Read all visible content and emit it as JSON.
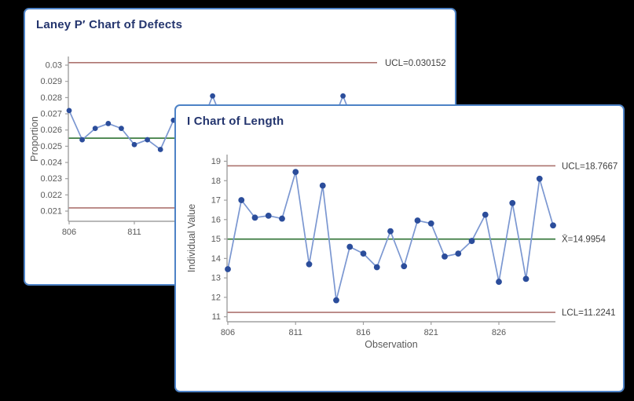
{
  "colors": {
    "page_bg": "#000000",
    "window_bg": "#ffffff",
    "window_border": "#4d82c6",
    "title_text": "#24356e",
    "marker": "#2b4d9b",
    "series_line": "#7b97d1",
    "limit_line": "#ad7470",
    "center_line": "#2e7233",
    "axis_line": "#a0a0a0",
    "tick_text": "#595959",
    "limit_label_text": "#404040"
  },
  "windows": {
    "laney": {
      "title": "Laney P′ Chart of Defects"
    },
    "ichart": {
      "title": "I Chart of Length"
    }
  },
  "chart_data": [
    {
      "id": "laney",
      "type": "line",
      "title": "Laney P′ Chart of Defects",
      "ylabel": "Proportion",
      "xlabel": "",
      "y_ticks": [
        "0.03",
        "0.029",
        "0.028",
        "0.027",
        "0.026",
        "0.025",
        "0.024",
        "0.023",
        "0.022",
        "0.021"
      ],
      "x_ticks": [
        "806",
        "811"
      ],
      "ylim": [
        0.0205,
        0.0305
      ],
      "grid": false,
      "ucl": 0.030152,
      "ucl_label": "UCL=0.030152",
      "center": 0.0255,
      "lcl": 0.0212,
      "x": [
        806,
        807,
        808,
        809,
        810,
        811,
        812,
        813,
        814
      ],
      "values": [
        0.0272,
        0.0254,
        0.0261,
        0.0264,
        0.0261,
        0.0251,
        0.0254,
        0.0248,
        0.0266
      ],
      "partially_hidden_points": [
        {
          "x": 817,
          "value": 0.0281
        },
        {
          "x": 827,
          "value": 0.0281
        }
      ]
    },
    {
      "id": "ichart",
      "type": "line",
      "title": "I Chart of Length",
      "ylabel": "Individual Value",
      "xlabel": "Observation",
      "y_ticks": [
        "19",
        "18",
        "17",
        "16",
        "15",
        "14",
        "13",
        "12",
        "11"
      ],
      "x_ticks": [
        "806",
        "811",
        "816",
        "821",
        "826"
      ],
      "ylim": [
        10.5,
        19.5
      ],
      "grid": false,
      "ucl": 18.7667,
      "ucl_label": "UCL=18.7667",
      "center": 14.9954,
      "center_label": "X̄=14.9954",
      "lcl": 11.2241,
      "lcl_label": "LCL=11.2241",
      "x": [
        806,
        807,
        808,
        809,
        810,
        811,
        812,
        813,
        814,
        815,
        816,
        817,
        818,
        819,
        820,
        821,
        822,
        823,
        824,
        825,
        826,
        827,
        828,
        829,
        830
      ],
      "values": [
        13.45,
        17.0,
        16.1,
        16.2,
        16.05,
        18.45,
        13.7,
        17.75,
        11.85,
        14.6,
        14.25,
        13.55,
        15.4,
        13.6,
        15.95,
        15.8,
        14.1,
        14.25,
        14.9,
        16.25,
        12.8,
        16.85,
        12.95,
        18.1,
        15.7
      ]
    }
  ]
}
